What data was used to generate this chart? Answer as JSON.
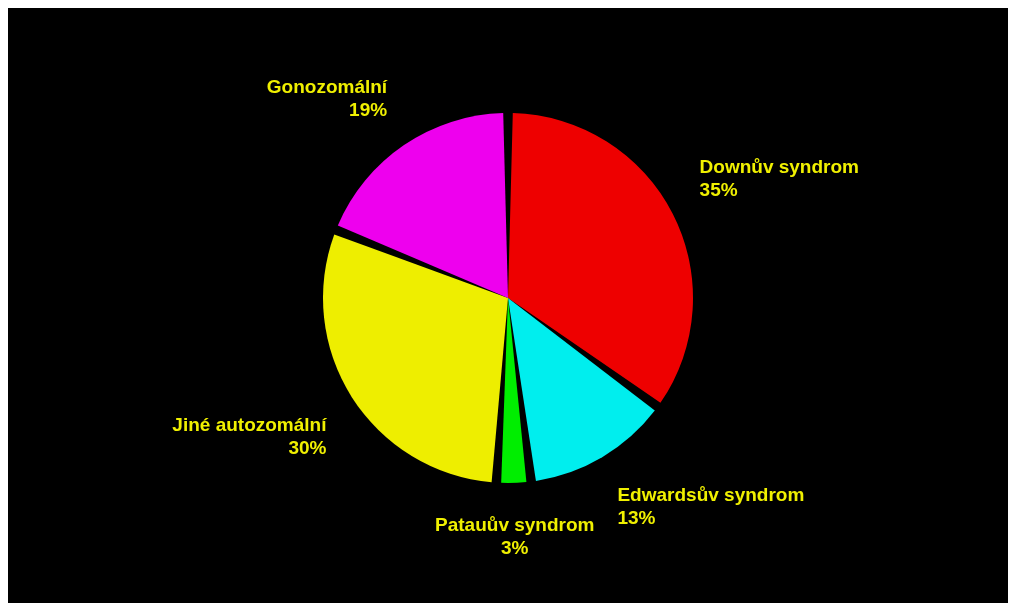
{
  "chart_data": {
    "type": "pie",
    "categories": [
      "Downův syndrom",
      "Edwardsův syndrom",
      "Patauův syndrom",
      "Jiné autozomální",
      "Gonozomální"
    ],
    "values": [
      35,
      13,
      3,
      30,
      19
    ],
    "value_labels": [
      "35%",
      "13%",
      "3%",
      "30%",
      "19%"
    ],
    "colors": [
      "#ee0000",
      "#00eeee",
      "#00ee00",
      "#eeee00",
      "#ee00ee"
    ]
  }
}
